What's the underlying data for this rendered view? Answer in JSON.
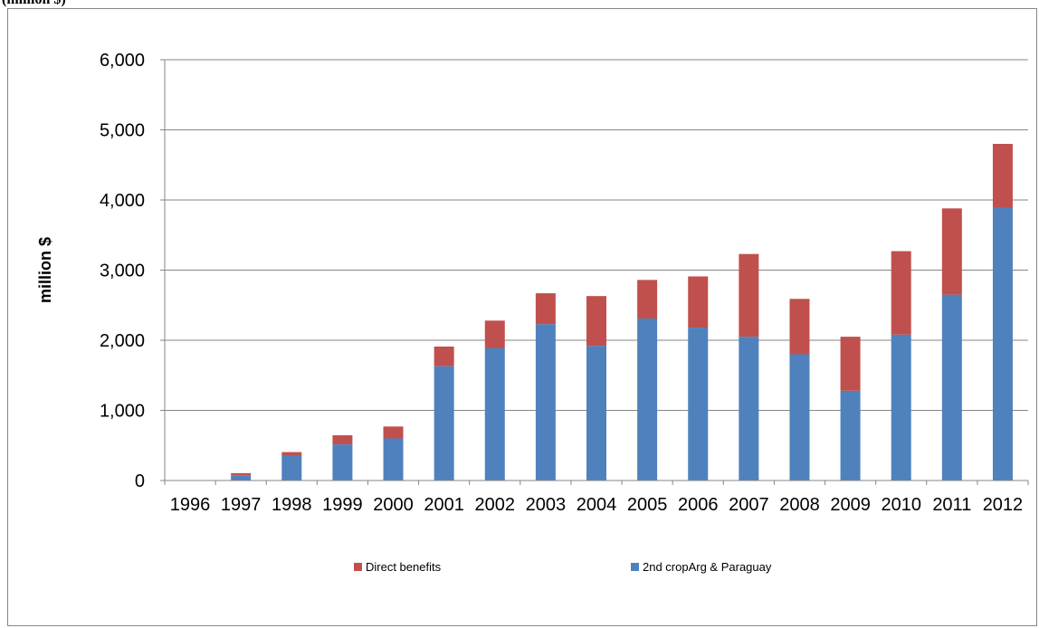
{
  "caption": "(million $)",
  "chart_data": {
    "type": "bar",
    "stacked": true,
    "categories": [
      "1996",
      "1997",
      "1998",
      "1999",
      "2000",
      "2001",
      "2002",
      "2003",
      "2004",
      "2005",
      "2006",
      "2007",
      "2008",
      "2009",
      "2010",
      "2011",
      "2012"
    ],
    "series": [
      {
        "name": "2nd cropArg & Paraguay",
        "color": "#4f81bd",
        "values": [
          0,
          75,
          355,
          515,
          600,
          1630,
          1890,
          2230,
          1920,
          2310,
          2180,
          2050,
          1800,
          1280,
          2080,
          2650,
          3890
        ]
      },
      {
        "name": "Direct benefits",
        "color": "#c0504d",
        "values": [
          0,
          30,
          50,
          130,
          170,
          280,
          390,
          440,
          710,
          550,
          730,
          1180,
          790,
          770,
          1190,
          1230,
          910
        ]
      }
    ],
    "ylabel": "million $",
    "ylim": [
      0,
      6000
    ],
    "yticks": [
      "0",
      "1,000",
      "2,000",
      "3,000",
      "4,000",
      "5,000",
      "6,000"
    ],
    "grid": "horizontal",
    "legend_position": "bottom",
    "legend_order": [
      "Direct benefits",
      "2nd cropArg & Paraguay"
    ]
  }
}
